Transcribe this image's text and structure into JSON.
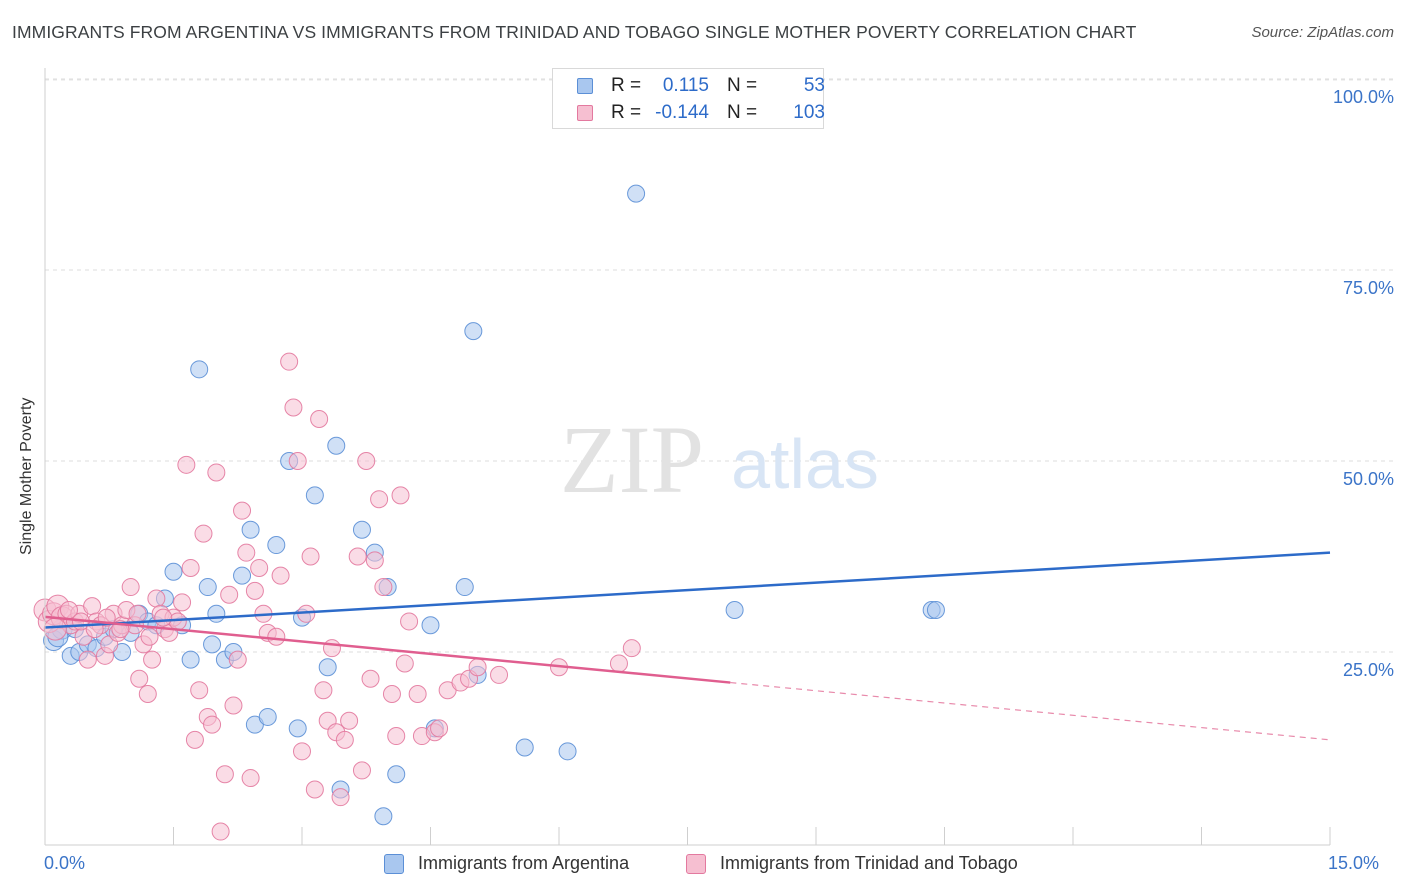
{
  "title": "IMMIGRANTS FROM ARGENTINA VS IMMIGRANTS FROM TRINIDAD AND TOBAGO SINGLE MOTHER POVERTY CORRELATION CHART",
  "source": "Source: ZipAtlas.com",
  "watermark": {
    "zip": "ZIP",
    "atlas": "atlas"
  },
  "legend": {
    "rows": [
      {
        "r_label": "R =",
        "r_value": "0.115",
        "n_label": "N =",
        "n_value": "53",
        "color": "#a9c7ef",
        "border": "#5b8fd6"
      },
      {
        "r_label": "R =",
        "r_value": "-0.144",
        "n_label": "N =",
        "n_value": "103",
        "color": "#f6bfd1",
        "border": "#e3799f"
      }
    ]
  },
  "chart_data": {
    "type": "scatter",
    "title": "IMMIGRANTS FROM ARGENTINA VS IMMIGRANTS FROM TRINIDAD AND TOBAGO SINGLE MOTHER POVERTY CORRELATION CHART",
    "xlabel": "",
    "ylabel": "Single Mother Poverty",
    "xlim": [
      0,
      15
    ],
    "ylim": [
      0,
      105
    ],
    "x_tick_labels": [
      "0.0%",
      "15.0%"
    ],
    "y_tick_labels": [
      "25.0%",
      "50.0%",
      "75.0%",
      "100.0%"
    ],
    "y_ticks": [
      25,
      50,
      75,
      100
    ],
    "grid": true,
    "legend_position": "bottom",
    "series": [
      {
        "name": "Immigrants from Argentina",
        "color": "#5b8fd6",
        "fill": "#a9c7ef",
        "trend": {
          "x": [
            0.0,
            15.0
          ],
          "y": [
            28.2,
            38.0
          ],
          "style": "solid"
        },
        "points": [
          [
            0.1,
            26.5
          ],
          [
            0.2,
            28.0
          ],
          [
            0.3,
            24.5
          ],
          [
            0.4,
            25.0
          ],
          [
            0.5,
            26.0
          ],
          [
            0.6,
            25.5
          ],
          [
            0.7,
            27.0
          ],
          [
            0.8,
            28.0
          ],
          [
            0.9,
            25.0
          ],
          [
            1.1,
            30.0
          ],
          [
            1.2,
            29.0
          ],
          [
            1.3,
            28.5
          ],
          [
            1.4,
            32.0
          ],
          [
            1.5,
            35.5
          ],
          [
            1.6,
            28.5
          ],
          [
            1.7,
            24.0
          ],
          [
            1.8,
            62.0
          ],
          [
            1.9,
            33.5
          ],
          [
            1.95,
            26.0
          ],
          [
            2.0,
            30.0
          ],
          [
            2.1,
            24.0
          ],
          [
            2.2,
            25.0
          ],
          [
            2.3,
            35.0
          ],
          [
            2.4,
            41.0
          ],
          [
            2.45,
            15.5
          ],
          [
            2.6,
            16.5
          ],
          [
            2.7,
            39.0
          ],
          [
            2.85,
            50.0
          ],
          [
            2.95,
            15.0
          ],
          [
            3.0,
            29.5
          ],
          [
            3.15,
            45.5
          ],
          [
            3.3,
            23.0
          ],
          [
            3.4,
            52.0
          ],
          [
            3.45,
            7.0
          ],
          [
            3.7,
            41.0
          ],
          [
            3.85,
            38.0
          ],
          [
            3.95,
            3.5
          ],
          [
            4.0,
            33.5
          ],
          [
            4.1,
            9.0
          ],
          [
            4.5,
            28.5
          ],
          [
            4.55,
            15.0
          ],
          [
            4.9,
            33.5
          ],
          [
            5.0,
            67.0
          ],
          [
            5.05,
            22.0
          ],
          [
            5.6,
            12.5
          ],
          [
            6.1,
            12.0
          ],
          [
            6.9,
            85.0
          ],
          [
            8.05,
            30.5
          ],
          [
            10.35,
            30.5
          ],
          [
            10.4,
            30.5
          ],
          [
            0.15,
            27.0
          ],
          [
            0.35,
            28.0
          ],
          [
            1.0,
            27.5
          ]
        ]
      },
      {
        "name": "Immigrants from Trinidad and Tobago",
        "color": "#e3799f",
        "fill": "#f6bfd1",
        "trend": {
          "x": [
            0.0,
            8.0
          ],
          "y": [
            29.6,
            21.0
          ],
          "style": "solid"
        },
        "trend_extension": {
          "x": [
            8.0,
            15.0
          ],
          "y": [
            21.0,
            13.5
          ],
          "style": "dashed"
        },
        "points": [
          [
            0.0,
            30.5
          ],
          [
            0.05,
            29.0
          ],
          [
            0.1,
            30.0
          ],
          [
            0.15,
            31.0
          ],
          [
            0.2,
            29.5
          ],
          [
            0.25,
            30.0
          ],
          [
            0.3,
            28.5
          ],
          [
            0.35,
            29.0
          ],
          [
            0.4,
            30.0
          ],
          [
            0.45,
            27.0
          ],
          [
            0.5,
            24.0
          ],
          [
            0.55,
            31.0
          ],
          [
            0.6,
            29.0
          ],
          [
            0.65,
            28.5
          ],
          [
            0.7,
            24.5
          ],
          [
            0.75,
            26.0
          ],
          [
            0.8,
            30.0
          ],
          [
            0.85,
            27.5
          ],
          [
            0.9,
            28.5
          ],
          [
            0.95,
            30.5
          ],
          [
            1.0,
            33.5
          ],
          [
            1.05,
            28.5
          ],
          [
            1.1,
            21.5
          ],
          [
            1.15,
            26.0
          ],
          [
            1.2,
            19.5
          ],
          [
            1.25,
            24.0
          ],
          [
            1.3,
            32.0
          ],
          [
            1.35,
            30.0
          ],
          [
            1.4,
            28.0
          ],
          [
            1.45,
            27.5
          ],
          [
            1.5,
            29.5
          ],
          [
            1.55,
            29.0
          ],
          [
            1.6,
            31.5
          ],
          [
            1.65,
            49.5
          ],
          [
            1.7,
            36.0
          ],
          [
            1.75,
            13.5
          ],
          [
            1.8,
            20.0
          ],
          [
            1.85,
            40.5
          ],
          [
            1.9,
            16.5
          ],
          [
            1.95,
            15.5
          ],
          [
            2.0,
            48.5
          ],
          [
            2.05,
            1.5
          ],
          [
            2.1,
            9.0
          ],
          [
            2.15,
            32.5
          ],
          [
            2.2,
            18.0
          ],
          [
            2.25,
            24.0
          ],
          [
            2.3,
            43.5
          ],
          [
            2.35,
            38.0
          ],
          [
            2.4,
            8.5
          ],
          [
            2.45,
            33.0
          ],
          [
            2.5,
            36.0
          ],
          [
            2.55,
            30.0
          ],
          [
            2.6,
            27.5
          ],
          [
            2.7,
            27.0
          ],
          [
            2.75,
            35.0
          ],
          [
            2.85,
            63.0
          ],
          [
            2.9,
            57.0
          ],
          [
            2.95,
            50.0
          ],
          [
            3.0,
            12.0
          ],
          [
            3.05,
            30.0
          ],
          [
            3.1,
            37.5
          ],
          [
            3.15,
            7.0
          ],
          [
            3.2,
            55.5
          ],
          [
            3.25,
            20.0
          ],
          [
            3.3,
            16.0
          ],
          [
            3.35,
            25.5
          ],
          [
            3.4,
            14.5
          ],
          [
            3.45,
            6.0
          ],
          [
            3.5,
            13.5
          ],
          [
            3.55,
            16.0
          ],
          [
            3.65,
            37.5
          ],
          [
            3.7,
            9.5
          ],
          [
            3.75,
            50.0
          ],
          [
            3.8,
            21.5
          ],
          [
            3.85,
            37.0
          ],
          [
            3.9,
            45.0
          ],
          [
            3.95,
            33.5
          ],
          [
            4.05,
            19.5
          ],
          [
            4.1,
            14.0
          ],
          [
            4.15,
            45.5
          ],
          [
            4.2,
            23.5
          ],
          [
            4.25,
            29.0
          ],
          [
            4.35,
            19.5
          ],
          [
            4.4,
            14.0
          ],
          [
            4.55,
            14.5
          ],
          [
            4.6,
            15.0
          ],
          [
            4.7,
            20.0
          ],
          [
            4.85,
            21.0
          ],
          [
            4.95,
            21.5
          ],
          [
            5.05,
            23.0
          ],
          [
            5.3,
            22.0
          ],
          [
            6.0,
            23.0
          ],
          [
            6.7,
            23.5
          ],
          [
            6.85,
            25.5
          ],
          [
            0.12,
            28.0
          ],
          [
            0.28,
            30.5
          ],
          [
            0.42,
            29.0
          ],
          [
            0.58,
            28.0
          ],
          [
            0.72,
            29.5
          ],
          [
            0.88,
            28.0
          ],
          [
            1.08,
            30.0
          ],
          [
            1.22,
            27.0
          ],
          [
            1.38,
            29.5
          ]
        ]
      }
    ]
  },
  "axes": {
    "ylabel": "Single Mother Poverty",
    "x_left": "0.0%",
    "x_right": "15.0%",
    "y_ticks": [
      "100.0%",
      "75.0%",
      "50.0%",
      "25.0%"
    ]
  },
  "bottom_legend": {
    "items": [
      {
        "label": "Immigrants from Argentina",
        "color": "#a9c7ef",
        "border": "#5b8fd6"
      },
      {
        "label": "Immigrants from Trinidad and Tobago",
        "color": "#f6bfd1",
        "border": "#e3799f"
      }
    ]
  }
}
